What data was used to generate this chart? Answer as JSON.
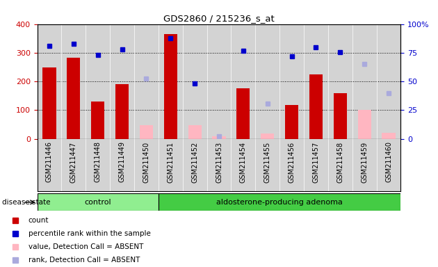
{
  "title": "GDS2860 / 215236_s_at",
  "samples": [
    "GSM211446",
    "GSM211447",
    "GSM211448",
    "GSM211449",
    "GSM211450",
    "GSM211451",
    "GSM211452",
    "GSM211453",
    "GSM211454",
    "GSM211455",
    "GSM211456",
    "GSM211457",
    "GSM211458",
    "GSM211459",
    "GSM211460"
  ],
  "count_values": [
    248,
    282,
    130,
    190,
    null,
    365,
    null,
    null,
    175,
    null,
    118,
    225,
    160,
    null,
    null
  ],
  "count_absent": [
    null,
    null,
    null,
    null,
    48,
    null,
    48,
    10,
    null,
    18,
    null,
    null,
    null,
    102,
    22
  ],
  "percentile_values": [
    325,
    330,
    292,
    312,
    null,
    350,
    192,
    null,
    308,
    null,
    288,
    320,
    302,
    null,
    null
  ],
  "percentile_absent": [
    null,
    null,
    null,
    null,
    210,
    null,
    null,
    10,
    null,
    122,
    null,
    null,
    null,
    260,
    160
  ],
  "ylim_left": [
    0,
    400
  ],
  "ylim_right": [
    0,
    100
  ],
  "yticks_left": [
    0,
    100,
    200,
    300,
    400
  ],
  "yticks_right": [
    0,
    25,
    50,
    75,
    100
  ],
  "control_count": 5,
  "adenoma_count": 10,
  "count_color": "#cc0000",
  "count_absent_color": "#ffb6c1",
  "percentile_color": "#0000cc",
  "percentile_absent_color": "#aaaadd",
  "bg_color": "#d3d3d3",
  "control_bg": "#90ee90",
  "adenoma_bg": "#44cc44",
  "disease_label": "disease state",
  "control_label": "control",
  "adenoma_label": "aldosterone-producing adenoma",
  "legend_items": [
    [
      "#cc0000",
      "count"
    ],
    [
      "#0000cc",
      "percentile rank within the sample"
    ],
    [
      "#ffb6c1",
      "value, Detection Call = ABSENT"
    ],
    [
      "#aaaadd",
      "rank, Detection Call = ABSENT"
    ]
  ]
}
